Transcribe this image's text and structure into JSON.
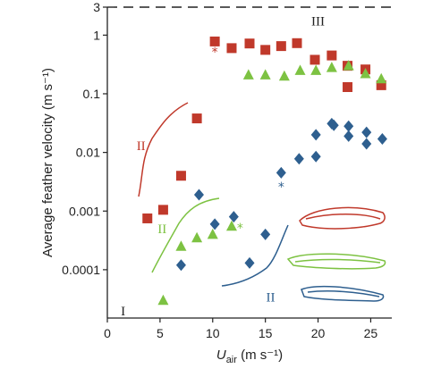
{
  "chart_data": {
    "type": "scatter",
    "xlabel": "U",
    "xlabel_sub": "air",
    "xlabel_unit": "(m s⁻¹)",
    "ylabel": "Average feather velocity (m s⁻¹)",
    "x_ticks": [
      "0",
      "5",
      "10",
      "15",
      "20",
      "25"
    ],
    "y_ticks": [
      "0.0001",
      "0.001",
      "0.01",
      "0.1",
      "1",
      "3"
    ],
    "xlim": [
      0,
      27
    ],
    "ylim": [
      1.5e-05,
      3
    ],
    "y_scale": "log",
    "grid": false,
    "reference_line": {
      "y": 3,
      "style": "dashed"
    },
    "series": [
      {
        "marker": "square",
        "color": "#c0392b",
        "points": [
          [
            3.8,
            0.00075
          ],
          [
            5.3,
            0.00105
          ],
          [
            7.0,
            0.004
          ],
          [
            8.5,
            0.038
          ],
          [
            10.2,
            0.78
          ],
          [
            11.8,
            0.6
          ],
          [
            13.5,
            0.72
          ],
          [
            15.0,
            0.56
          ],
          [
            16.5,
            0.65
          ],
          [
            18.0,
            0.73
          ],
          [
            19.7,
            0.38
          ],
          [
            21.3,
            0.45
          ],
          [
            22.8,
            0.3
          ],
          [
            22.8,
            0.13
          ],
          [
            24.5,
            0.26
          ],
          [
            26.0,
            0.14
          ]
        ]
      },
      {
        "marker": "triangle",
        "color": "#7dc242",
        "points": [
          [
            5.3,
            3e-05
          ],
          [
            7.0,
            0.00025
          ],
          [
            8.5,
            0.00035
          ],
          [
            10.0,
            0.0004
          ],
          [
            11.8,
            0.00055
          ],
          [
            13.4,
            0.21
          ],
          [
            15.0,
            0.21
          ],
          [
            16.8,
            0.2
          ],
          [
            18.3,
            0.25
          ],
          [
            19.8,
            0.25
          ],
          [
            21.3,
            0.28
          ],
          [
            22.9,
            0.3
          ],
          [
            24.5,
            0.22
          ],
          [
            26.0,
            0.18
          ]
        ]
      },
      {
        "marker": "diamond",
        "color": "#2e5f8f",
        "points": [
          [
            7.0,
            0.00012
          ],
          [
            8.7,
            0.0019
          ],
          [
            10.2,
            0.0006
          ],
          [
            12.0,
            0.0008
          ],
          [
            13.5,
            0.00013
          ],
          [
            15.0,
            0.0004
          ],
          [
            16.5,
            0.0045
          ],
          [
            18.2,
            0.0078
          ],
          [
            19.8,
            0.0085
          ],
          [
            19.8,
            0.02
          ],
          [
            21.3,
            0.031
          ],
          [
            21.5,
            0.029
          ],
          [
            22.9,
            0.028
          ],
          [
            22.9,
            0.019
          ],
          [
            24.6,
            0.022
          ],
          [
            24.6,
            0.014
          ],
          [
            26.1,
            0.017
          ]
        ]
      }
    ],
    "annotations": [
      {
        "text": "III",
        "x": 20.0,
        "y": 1.75,
        "color": "#222222"
      },
      {
        "text": "II",
        "x": 3.2,
        "y": 0.013,
        "color": "#c0392b"
      },
      {
        "text": "II",
        "x": 5.2,
        "y": 0.0005,
        "color": "#7dc242"
      },
      {
        "text": "II",
        "x": 15.5,
        "y": 3.4e-05,
        "color": "#2e5f8f"
      },
      {
        "text": "I",
        "x": 1.5,
        "y": 2e-05,
        "color": "#222222"
      },
      {
        "text": "*",
        "x": 10.2,
        "y": 0.52,
        "color": "#c0392b"
      },
      {
        "text": "*",
        "x": 12.6,
        "y": 0.00052,
        "color": "#7dc242"
      },
      {
        "text": "*",
        "x": 16.5,
        "y": 0.0026,
        "color": "#2e5f8f"
      }
    ]
  },
  "colors": {
    "red": "#c0392b",
    "green": "#7dc242",
    "blue": "#2e5f8f",
    "axis": "#222222"
  }
}
